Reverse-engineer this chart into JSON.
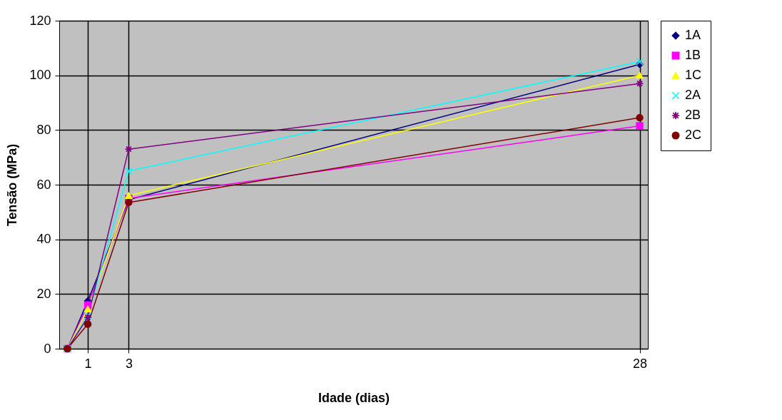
{
  "chart_data": {
    "type": "line",
    "xlabel": "Idade (dias)",
    "ylabel": "Tensão (MPa)",
    "x": [
      0,
      1,
      3,
      28
    ],
    "xlim": [
      -0.4,
      28.4
    ],
    "xticks": [
      1,
      3,
      28
    ],
    "ylim": [
      0,
      120
    ],
    "yticks": [
      0,
      20,
      40,
      60,
      80,
      100,
      120
    ],
    "grid": true,
    "legend": "right",
    "series": [
      {
        "name": "1A",
        "color": "#000080",
        "marker": "diamond",
        "values": [
          0,
          17.5,
          54.5,
          104
        ]
      },
      {
        "name": "1B",
        "color": "#ff00ff",
        "marker": "square",
        "values": [
          0,
          16,
          55,
          81.5
        ]
      },
      {
        "name": "1C",
        "color": "#ffff00",
        "marker": "triangle",
        "values": [
          0,
          14.5,
          56,
          100
        ]
      },
      {
        "name": "2A",
        "color": "#00ffff",
        "marker": "cross",
        "values": [
          0,
          12,
          65,
          105
        ]
      },
      {
        "name": "2B",
        "color": "#800080",
        "marker": "star",
        "values": [
          0,
          11.5,
          73,
          97
        ]
      },
      {
        "name": "2C",
        "color": "#800000",
        "marker": "circle",
        "values": [
          0,
          9,
          53.5,
          84.5
        ]
      }
    ]
  }
}
